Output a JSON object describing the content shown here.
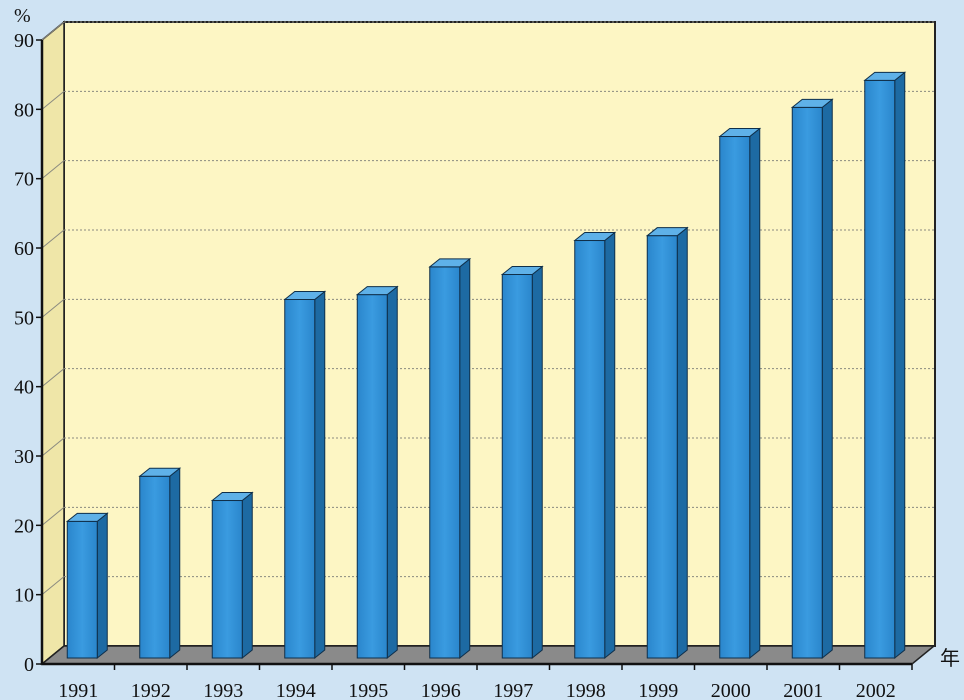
{
  "chart_data": {
    "type": "bar",
    "title": "",
    "xlabel": "年",
    "ylabel": "%",
    "ylim": [
      0,
      90
    ],
    "yticks": [
      0,
      10,
      20,
      30,
      40,
      50,
      60,
      70,
      80,
      90
    ],
    "categories": [
      "1991",
      "1992",
      "1993",
      "1994",
      "1995",
      "1996",
      "1997",
      "1998",
      "1999",
      "2000",
      "2001",
      "2002"
    ],
    "values": [
      20,
      26.5,
      23,
      52,
      52.7,
      56.7,
      55.6,
      60.5,
      61.2,
      75.5,
      79.7,
      83.6
    ],
    "grid": true,
    "legend": "none",
    "colors": {
      "bar_front": "#2f8fd6",
      "bar_side": "#1d6aa3",
      "bar_top": "#5fb1e8",
      "plot_background": "#fdf6c4",
      "floor": "#8a8a8a",
      "page_background": "#cfe3f3"
    }
  }
}
